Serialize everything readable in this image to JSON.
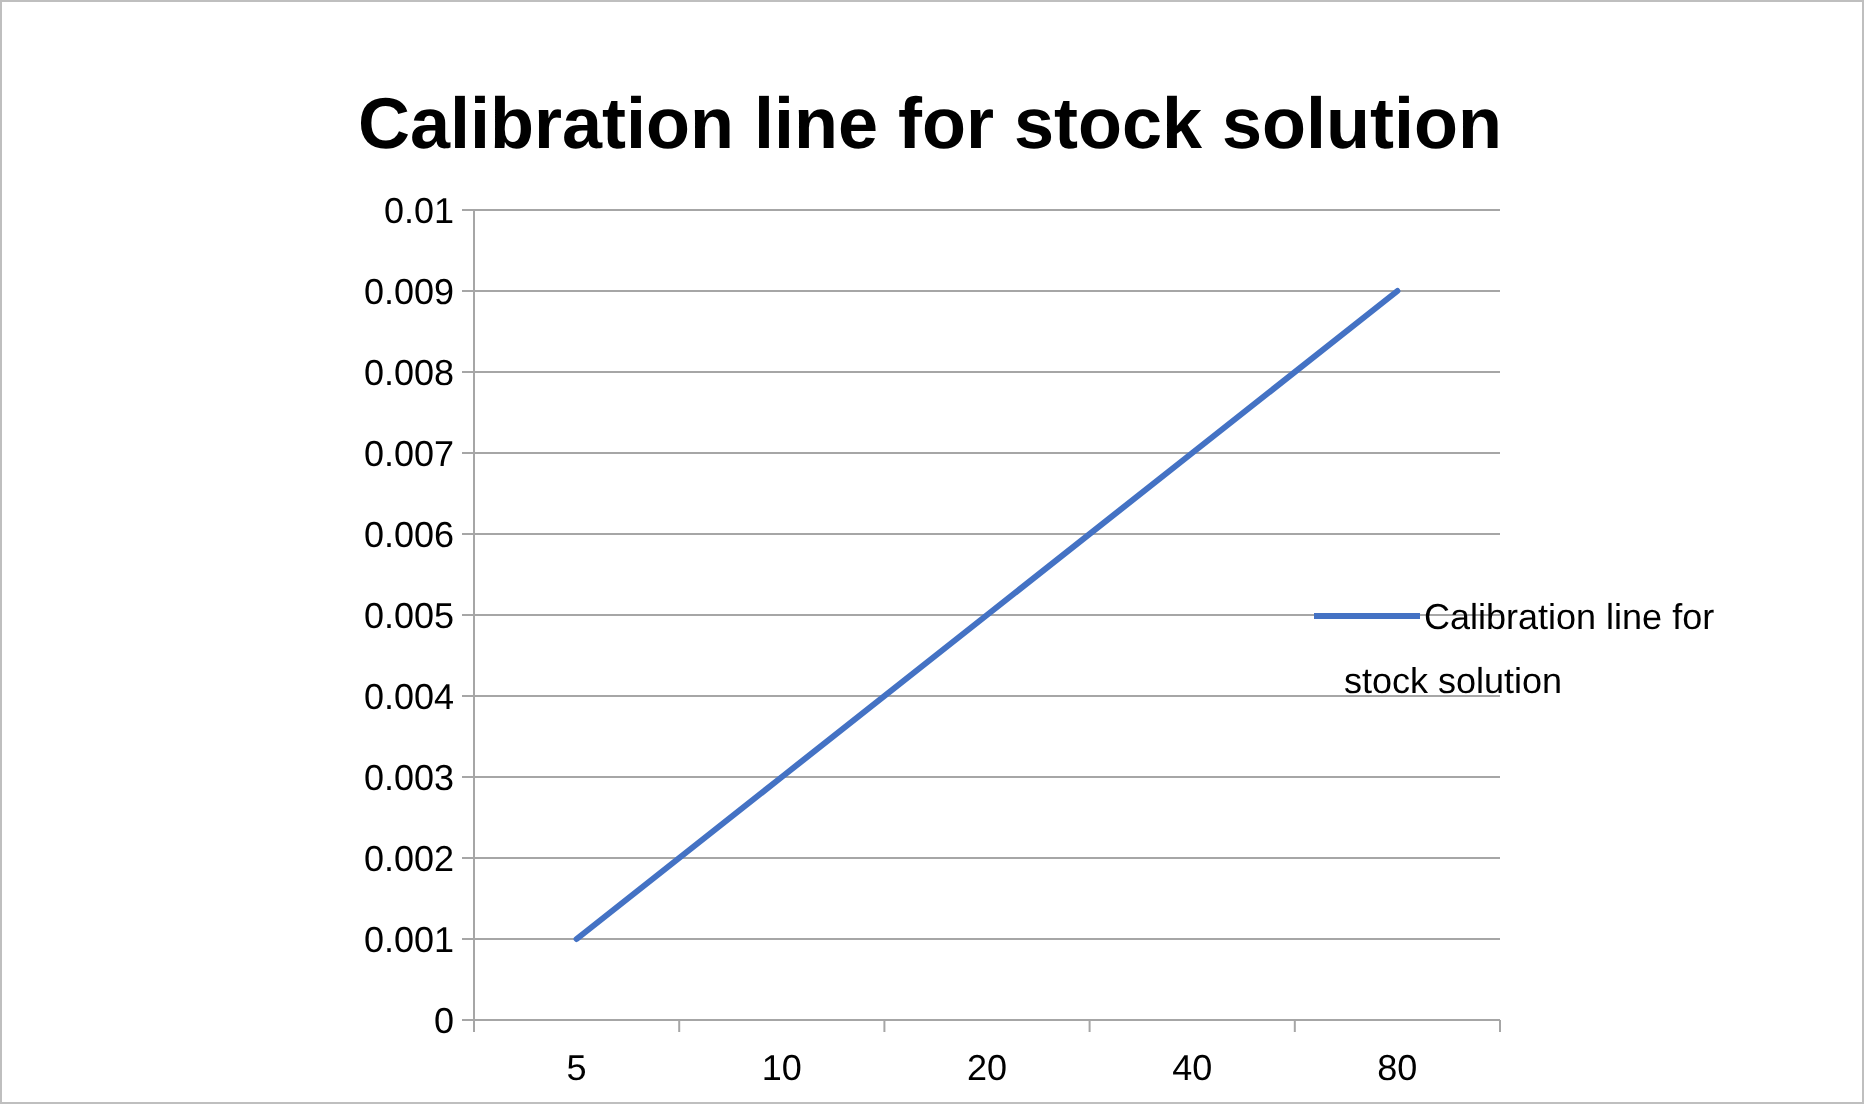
{
  "chart_data": {
    "type": "line",
    "title": "Calibration line for stock solution",
    "categories": [
      "5",
      "10",
      "20",
      "40",
      "80"
    ],
    "series": [
      {
        "name": "Calibration line for stock solution",
        "color": "#4472c4",
        "values": [
          0.001,
          0.003,
          0.005,
          0.007,
          0.009
        ]
      }
    ],
    "ylim": [
      0,
      0.01
    ],
    "yticks": [
      0,
      0.001,
      0.002,
      0.003,
      0.004,
      0.005,
      0.006,
      0.007,
      0.008,
      0.009,
      0.01
    ],
    "grid": "y",
    "legend": "right",
    "marker": "none"
  }
}
